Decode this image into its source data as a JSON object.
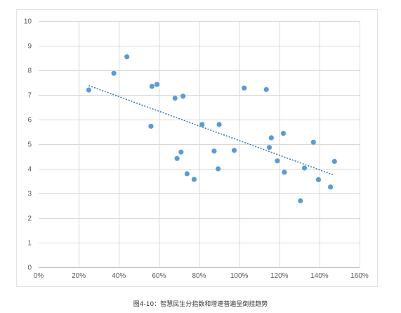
{
  "caption": "图4-10：智慧民生分指数和增速普遍呈倒挂趋势",
  "chart_data": {
    "type": "scatter",
    "title": "",
    "xlabel": "",
    "ylabel": "",
    "xlim": [
      0,
      160
    ],
    "ylim": [
      0,
      10
    ],
    "x_ticks": [
      0,
      20,
      40,
      60,
      80,
      100,
      120,
      140,
      160
    ],
    "x_tick_labels": [
      "0%",
      "20%",
      "40%",
      "60%",
      "80%",
      "100%",
      "120%",
      "140%",
      "160%"
    ],
    "y_ticks": [
      0,
      1,
      2,
      3,
      4,
      5,
      6,
      7,
      8,
      9,
      10
    ],
    "y_tick_labels": [
      "0",
      "1",
      "2",
      "3",
      "4",
      "5",
      "6",
      "7",
      "8",
      "9",
      "10"
    ],
    "grid": true,
    "point_color": "#5b9bd5",
    "trendline": {
      "type": "linear",
      "style": "dotted",
      "color": "#2e75b6",
      "from": [
        25,
        7.38
      ],
      "to": [
        147,
        3.75
      ]
    },
    "points": [
      {
        "x": 25,
        "y": 7.2
      },
      {
        "x": 37.5,
        "y": 7.88
      },
      {
        "x": 44,
        "y": 8.55
      },
      {
        "x": 56,
        "y": 5.73
      },
      {
        "x": 56.5,
        "y": 7.35
      },
      {
        "x": 59,
        "y": 7.43
      },
      {
        "x": 68,
        "y": 6.87
      },
      {
        "x": 69,
        "y": 4.42
      },
      {
        "x": 71,
        "y": 4.68
      },
      {
        "x": 72,
        "y": 6.95
      },
      {
        "x": 74,
        "y": 3.8
      },
      {
        "x": 77.5,
        "y": 3.57
      },
      {
        "x": 81.5,
        "y": 5.8
      },
      {
        "x": 87.5,
        "y": 4.72
      },
      {
        "x": 89.5,
        "y": 4.0
      },
      {
        "x": 90,
        "y": 5.8
      },
      {
        "x": 97.5,
        "y": 4.75
      },
      {
        "x": 102.5,
        "y": 7.28
      },
      {
        "x": 113.5,
        "y": 7.22
      },
      {
        "x": 115,
        "y": 4.87
      },
      {
        "x": 116,
        "y": 5.26
      },
      {
        "x": 119,
        "y": 4.32
      },
      {
        "x": 122,
        "y": 5.44
      },
      {
        "x": 122.5,
        "y": 3.86
      },
      {
        "x": 130.5,
        "y": 2.7
      },
      {
        "x": 132.5,
        "y": 4.03
      },
      {
        "x": 137,
        "y": 5.08
      },
      {
        "x": 139.5,
        "y": 3.56
      },
      {
        "x": 145.5,
        "y": 3.26
      },
      {
        "x": 147.5,
        "y": 4.3
      }
    ]
  }
}
